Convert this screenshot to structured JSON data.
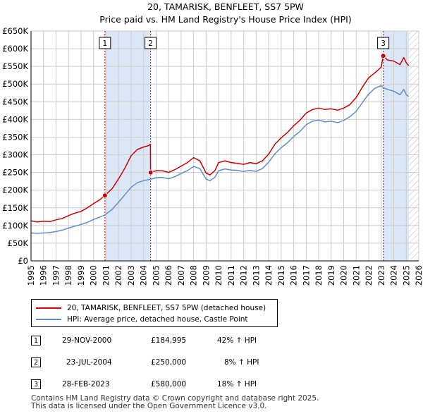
{
  "title_line1": "20, TAMARISK, BENFLEET, SS7 5PW",
  "title_line2": "Price paid vs. HM Land Registry's House Price Index (HPI)",
  "colors": {
    "property": "#cc0000",
    "hpi": "#5b8fc9",
    "shade": "#dbe6f7",
    "grid": "#cccccc",
    "future_hatch": "#aaaaaa"
  },
  "chart_data": {
    "type": "line",
    "xlim": [
      1995,
      2026
    ],
    "ylim": [
      0,
      650000
    ],
    "yticks": [
      0,
      50000,
      100000,
      150000,
      200000,
      250000,
      300000,
      350000,
      400000,
      450000,
      500000,
      550000,
      600000,
      650000
    ],
    "ytick_labels": [
      "£0",
      "£50K",
      "£100K",
      "£150K",
      "£200K",
      "£250K",
      "£300K",
      "£350K",
      "£400K",
      "£450K",
      "£500K",
      "£550K",
      "£600K",
      "£650K"
    ],
    "xticks": [
      1995,
      1996,
      1997,
      1998,
      1999,
      2000,
      2001,
      2002,
      2003,
      2004,
      2005,
      2006,
      2007,
      2008,
      2009,
      2010,
      2011,
      2012,
      2013,
      2014,
      2015,
      2016,
      2017,
      2018,
      2019,
      2020,
      2021,
      2022,
      2023,
      2024,
      2025,
      2026
    ],
    "xtick_labels": [
      "1995",
      "1996",
      "1997",
      "1998",
      "1999",
      "2000",
      "2001",
      "2002",
      "2003",
      "2004",
      "2005",
      "2006",
      "2007",
      "2008",
      "2009",
      "2010",
      "2011",
      "2012",
      "2013",
      "2014",
      "2015",
      "2016",
      "2017",
      "2018",
      "2019",
      "2020",
      "2021",
      "2022",
      "2023",
      "2024",
      "2025",
      "2026"
    ],
    "grid": true,
    "shaded_ranges": [
      [
        2000.91,
        2004.56
      ],
      [
        2023.16,
        2025.2
      ]
    ],
    "future_start": 2025.2,
    "series": [
      {
        "name": "20, TAMARISK, BENFLEET, SS7 5PW (detached house)",
        "x": [
          1995.0,
          1995.5,
          1996.0,
          1996.5,
          1997.0,
          1997.5,
          1998.0,
          1998.5,
          1999.0,
          1999.5,
          2000.0,
          2000.5,
          2000.91,
          2001.5,
          2002.0,
          2002.5,
          2003.0,
          2003.5,
          2004.0,
          2004.4,
          2004.55,
          2004.56,
          2005.0,
          2005.5,
          2006.0,
          2006.5,
          2007.0,
          2007.5,
          2008.0,
          2008.5,
          2009.0,
          2009.3,
          2009.7,
          2010.0,
          2010.5,
          2011.0,
          2011.5,
          2012.0,
          2012.5,
          2013.0,
          2013.5,
          2014.0,
          2014.5,
          2015.0,
          2015.5,
          2016.0,
          2016.5,
          2017.0,
          2017.5,
          2018.0,
          2018.5,
          2019.0,
          2019.5,
          2020.0,
          2020.5,
          2021.0,
          2021.5,
          2022.0,
          2022.5,
          2023.0,
          2023.16,
          2023.5,
          2024.0,
          2024.5,
          2024.8,
          2025.0,
          2025.2
        ],
        "y": [
          113000,
          110000,
          112000,
          111000,
          116000,
          120000,
          128000,
          135000,
          140000,
          150000,
          162000,
          173000,
          184995,
          205000,
          232000,
          262000,
          297000,
          315000,
          322000,
          326000,
          330000,
          250000,
          255000,
          255000,
          250000,
          258000,
          268000,
          278000,
          292000,
          283000,
          248000,
          243000,
          255000,
          278000,
          283000,
          278000,
          276000,
          273000,
          278000,
          275000,
          283000,
          302000,
          330000,
          348000,
          363000,
          382000,
          398000,
          418000,
          428000,
          432000,
          428000,
          430000,
          426000,
          432000,
          442000,
          462000,
          492000,
          518000,
          532000,
          548000,
          580000,
          568000,
          565000,
          555000,
          575000,
          560000,
          552000
        ]
      },
      {
        "name": "HPI: Average price, detached house, Castle Point",
        "x": [
          1995.0,
          1995.5,
          1996.0,
          1996.5,
          1997.0,
          1997.5,
          1998.0,
          1998.5,
          1999.0,
          1999.5,
          2000.0,
          2000.5,
          2000.91,
          2001.5,
          2002.0,
          2002.5,
          2003.0,
          2003.5,
          2004.0,
          2004.56,
          2005.0,
          2005.5,
          2006.0,
          2006.5,
          2007.0,
          2007.5,
          2008.0,
          2008.5,
          2009.0,
          2009.3,
          2009.7,
          2010.0,
          2010.5,
          2011.0,
          2011.5,
          2012.0,
          2012.5,
          2013.0,
          2013.5,
          2014.0,
          2014.5,
          2015.0,
          2015.5,
          2016.0,
          2016.5,
          2017.0,
          2017.5,
          2018.0,
          2018.5,
          2019.0,
          2019.5,
          2020.0,
          2020.5,
          2021.0,
          2021.5,
          2022.0,
          2022.5,
          2023.0,
          2023.16,
          2023.5,
          2024.0,
          2024.5,
          2024.8,
          2025.0,
          2025.2
        ],
        "y": [
          79000,
          78000,
          79000,
          80000,
          83000,
          87000,
          93000,
          98000,
          103000,
          109000,
          117000,
          124000,
          130000,
          146000,
          166000,
          187000,
          208000,
          221000,
          227000,
          231000,
          235000,
          236000,
          232000,
          238000,
          247000,
          255000,
          267000,
          261000,
          231000,
          227000,
          236000,
          255000,
          260000,
          257000,
          256000,
          253000,
          256000,
          253000,
          261000,
          279000,
          303000,
          320000,
          334000,
          352000,
          366000,
          385000,
          395000,
          398000,
          393000,
          395000,
          391000,
          397000,
          408000,
          423000,
          448000,
          472000,
          488000,
          496000,
          490000,
          485000,
          480000,
          470000,
          485000,
          470000,
          465000
        ]
      }
    ],
    "markers": [
      {
        "label": "1",
        "x": 2000.91,
        "y": 184995
      },
      {
        "label": "2",
        "x": 2004.56,
        "y": 250000
      },
      {
        "label": "3",
        "x": 2023.16,
        "y": 580000
      }
    ]
  },
  "legend": {
    "property_label": "20, TAMARISK, BENFLEET, SS7 5PW (detached house)",
    "hpi_label": "HPI: Average price, detached house, Castle Point"
  },
  "transactions": [
    {
      "num": "1",
      "date": "29-NOV-2000",
      "price": "£184,995",
      "hpi": "42% ↑ HPI"
    },
    {
      "num": "2",
      "date": "23-JUL-2004",
      "price": "£250,000",
      "hpi": "8% ↑ HPI"
    },
    {
      "num": "3",
      "date": "28-FEB-2023",
      "price": "£580,000",
      "hpi": "18% ↑ HPI"
    }
  ],
  "footer_line1": "Contains HM Land Registry data © Crown copyright and database right 2025.",
  "footer_line2": "This data is licensed under the Open Government Licence v3.0."
}
